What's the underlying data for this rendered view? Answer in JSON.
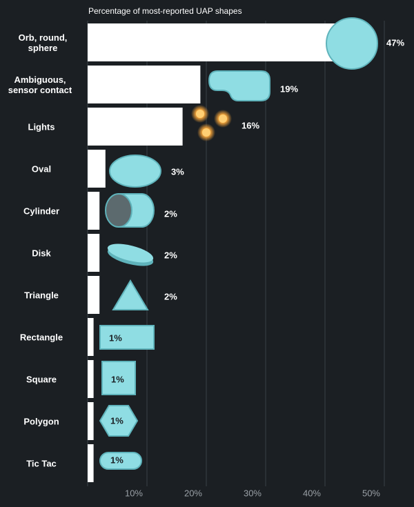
{
  "chart_data": {
    "type": "bar",
    "orientation": "horizontal",
    "title": "Percentage of most-reported UAP shapes",
    "categories": [
      "Orb, round, sphere",
      "Ambiguous, sensor contact",
      "Lights",
      "Oval",
      "Cylinder",
      "Disk",
      "Triangle",
      "Rectangle",
      "Square",
      "Polygon",
      "Tic Tac"
    ],
    "values": [
      47,
      19,
      16,
      3,
      2,
      2,
      2,
      1,
      1,
      1,
      1
    ],
    "value_labels": [
      "47%",
      "19%",
      "16%",
      "3%",
      "2%",
      "2%",
      "2%",
      "1%",
      "1%",
      "1%",
      "1%"
    ],
    "color": "#ffffff",
    "xlim": [
      0,
      50
    ],
    "xticks": [
      {
        "value": 10,
        "label": "10%"
      },
      {
        "value": 20,
        "label": "20%"
      },
      {
        "value": 30,
        "label": "30%"
      },
      {
        "value": 40,
        "label": "40%"
      },
      {
        "value": 50,
        "label": "50%"
      }
    ],
    "grid": true
  }
}
